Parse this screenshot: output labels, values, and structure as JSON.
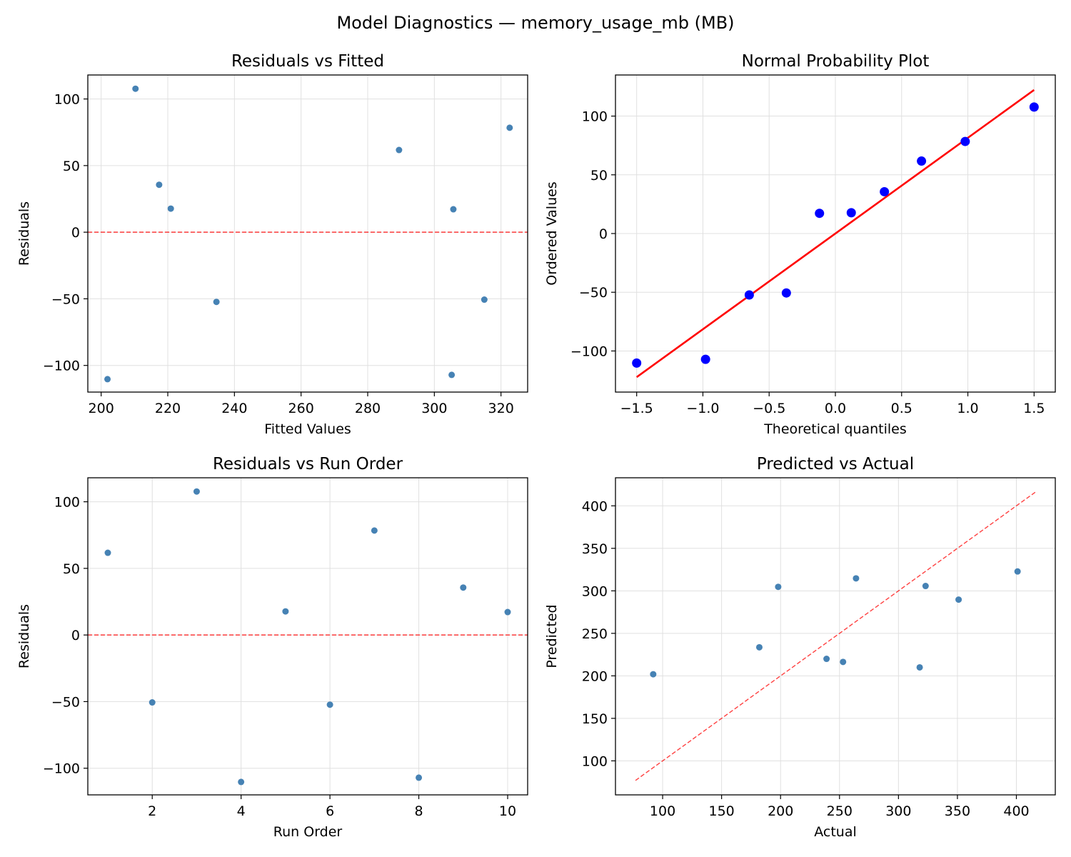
{
  "figure": {
    "title": "Model Diagnostics — memory_usage_mb (MB)"
  },
  "colors": {
    "point": "#4682b4",
    "probability_point": "#0000ff",
    "fit_line": "#ff0000",
    "reference_line": "#ff0000",
    "grid": "#e0e0e0"
  },
  "chart_data": [
    {
      "id": "resid-fitted",
      "type": "scatter",
      "title": "Residuals vs Fitted",
      "xlabel": "Fitted Values",
      "ylabel": "Residuals",
      "xlim": [
        196,
        328
      ],
      "ylim": [
        -120,
        118
      ],
      "xticks": [
        200,
        220,
        240,
        260,
        280,
        300,
        320
      ],
      "yticks": [
        -100,
        -50,
        0,
        50,
        100
      ],
      "grid": true,
      "reference": {
        "kind": "hline",
        "y": 0,
        "style": "dashed"
      },
      "points": [
        {
          "x": 201.9,
          "y": -110.3
        },
        {
          "x": 210.3,
          "y": 107.7
        },
        {
          "x": 217.4,
          "y": 35.6
        },
        {
          "x": 220.9,
          "y": 17.7
        },
        {
          "x": 234.6,
          "y": -52.3
        },
        {
          "x": 289.4,
          "y": 61.7
        },
        {
          "x": 305.2,
          "y": -107.1
        },
        {
          "x": 305.7,
          "y": 17.2
        },
        {
          "x": 315.0,
          "y": -50.6
        },
        {
          "x": 322.6,
          "y": 78.4
        }
      ]
    },
    {
      "id": "normal-prob",
      "type": "scatter",
      "title": "Normal Probability Plot",
      "xlabel": "Theoretical quantiles",
      "ylabel": "Ordered Values",
      "xlim": [
        -1.66,
        1.66
      ],
      "ylim": [
        -135,
        135
      ],
      "xticks": [
        -1.5,
        -1.0,
        -0.5,
        0.0,
        0.5,
        1.0,
        1.5
      ],
      "xticklabels": [
        "−1.5",
        "−1.0",
        "−0.5",
        "0.0",
        "0.5",
        "1.0",
        "1.5"
      ],
      "yticks": [
        -100,
        -50,
        0,
        50,
        100
      ],
      "grid": true,
      "fit_line": {
        "slope": 81.5,
        "intercept": 0.0,
        "x_range": [
          -1.5,
          1.5
        ]
      },
      "points": [
        {
          "x": -1.5,
          "y": -110.3
        },
        {
          "x": -0.98,
          "y": -107.1
        },
        {
          "x": -0.65,
          "y": -52.3
        },
        {
          "x": -0.37,
          "y": -50.6
        },
        {
          "x": -0.12,
          "y": 17.2
        },
        {
          "x": 0.12,
          "y": 17.7
        },
        {
          "x": 0.37,
          "y": 35.6
        },
        {
          "x": 0.65,
          "y": 61.7
        },
        {
          "x": 0.98,
          "y": 78.4
        },
        {
          "x": 1.5,
          "y": 107.7
        }
      ]
    },
    {
      "id": "resid-order",
      "type": "scatter",
      "title": "Residuals vs Run Order",
      "xlabel": "Run Order",
      "ylabel": "Residuals",
      "xlim": [
        0.55,
        10.45
      ],
      "ylim": [
        -120,
        118
      ],
      "xticks": [
        2,
        4,
        6,
        8,
        10
      ],
      "yticks": [
        -100,
        -50,
        0,
        50,
        100
      ],
      "grid": true,
      "reference": {
        "kind": "hline",
        "y": 0,
        "style": "dashed"
      },
      "points": [
        {
          "x": 1,
          "y": 61.7
        },
        {
          "x": 2,
          "y": -50.6
        },
        {
          "x": 3,
          "y": 107.7
        },
        {
          "x": 4,
          "y": -110.3
        },
        {
          "x": 5,
          "y": 17.7
        },
        {
          "x": 6,
          "y": -52.3
        },
        {
          "x": 7,
          "y": 78.4
        },
        {
          "x": 8,
          "y": -107.1
        },
        {
          "x": 9,
          "y": 35.6
        },
        {
          "x": 10,
          "y": 17.2
        }
      ]
    },
    {
      "id": "pred-actual",
      "type": "scatter",
      "title": "Predicted vs Actual",
      "xlabel": "Actual",
      "ylabel": "Predicted",
      "xlim": [
        60,
        433
      ],
      "ylim": [
        60,
        433
      ],
      "xticks": [
        100,
        150,
        200,
        250,
        300,
        350,
        400
      ],
      "yticks": [
        100,
        150,
        200,
        250,
        300,
        350,
        400
      ],
      "grid": true,
      "reference": {
        "kind": "diagonal",
        "from": 77,
        "to": 416,
        "style": "dashed"
      },
      "points": [
        {
          "x": 92,
          "y": 201.9
        },
        {
          "x": 182,
          "y": 233.6
        },
        {
          "x": 198,
          "y": 304.7
        },
        {
          "x": 239,
          "y": 220.0
        },
        {
          "x": 253,
          "y": 216.4
        },
        {
          "x": 264,
          "y": 314.7
        },
        {
          "x": 318,
          "y": 210.0
        },
        {
          "x": 323,
          "y": 305.7
        },
        {
          "x": 351,
          "y": 289.7
        },
        {
          "x": 401,
          "y": 322.8
        }
      ]
    }
  ]
}
